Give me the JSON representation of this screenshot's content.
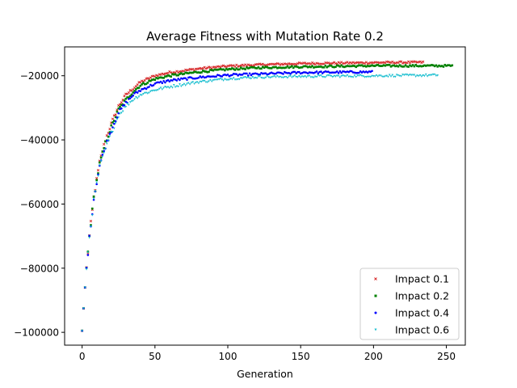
{
  "chart_data": {
    "type": "scatter",
    "title": "Average Fitness with Mutation Rate 0.2",
    "xlabel": "Generation",
    "ylabel": "",
    "xlim": [
      -12,
      263
    ],
    "ylim": [
      -104000,
      -11000
    ],
    "xticks": [
      0,
      50,
      100,
      150,
      200,
      250
    ],
    "xtick_labels": [
      "0",
      "50",
      "100",
      "150",
      "200",
      "250"
    ],
    "yticks": [
      -100000,
      -80000,
      -60000,
      -40000,
      -20000
    ],
    "ytick_labels": [
      "−100000",
      "−80000",
      "−60000",
      "−40000",
      "−20000"
    ],
    "legend_position": "lower right",
    "grid": false,
    "series": [
      {
        "name": "Impact 0.1",
        "color": "#d62728",
        "marker": "x",
        "n_generations": 235,
        "x": [
          0,
          1,
          2,
          3,
          5,
          8,
          12,
          16,
          20,
          25,
          30,
          35,
          40,
          50,
          60,
          80,
          100,
          120,
          150,
          200,
          234
        ],
        "y": [
          -99500,
          -92500,
          -86000,
          -80000,
          -70000,
          -58000,
          -47000,
          -40000,
          -35000,
          -29500,
          -26000,
          -24000,
          -22000,
          -20000,
          -19000,
          -17800,
          -17000,
          -16600,
          -16200,
          -15900,
          -15800
        ]
      },
      {
        "name": "Impact 0.2",
        "color": "#008000",
        "marker": "s",
        "n_generations": 255,
        "x": [
          0,
          1,
          2,
          3,
          5,
          8,
          12,
          16,
          20,
          25,
          30,
          35,
          40,
          50,
          60,
          80,
          100,
          120,
          150,
          200,
          254
        ],
        "y": [
          -99500,
          -92500,
          -86000,
          -80000,
          -70000,
          -58000,
          -47500,
          -41000,
          -36000,
          -30500,
          -27500,
          -25000,
          -23000,
          -21000,
          -20000,
          -18800,
          -18000,
          -17500,
          -17200,
          -16900,
          -16900
        ]
      },
      {
        "name": "Impact 0.4",
        "color": "#0000ff",
        "marker": "o",
        "n_generations": 200,
        "x": [
          0,
          1,
          2,
          3,
          5,
          8,
          12,
          16,
          20,
          25,
          30,
          35,
          40,
          50,
          60,
          80,
          100,
          120,
          150,
          199
        ],
        "y": [
          -99500,
          -92500,
          -86000,
          -80000,
          -70500,
          -58500,
          -48000,
          -42000,
          -37000,
          -31500,
          -28500,
          -26000,
          -24500,
          -22500,
          -21500,
          -20500,
          -19800,
          -19500,
          -19000,
          -18800
        ]
      },
      {
        "name": "Impact 0.6",
        "color": "#17becf",
        "marker": "v",
        "n_generations": 245,
        "x": [
          0,
          1,
          2,
          3,
          5,
          8,
          12,
          16,
          20,
          25,
          30,
          35,
          40,
          50,
          60,
          80,
          100,
          120,
          150,
          200,
          244
        ],
        "y": [
          -99500,
          -92500,
          -86000,
          -80000,
          -70500,
          -59000,
          -48500,
          -43000,
          -38000,
          -32500,
          -29500,
          -27500,
          -26000,
          -24500,
          -23500,
          -22000,
          -21000,
          -20500,
          -20300,
          -20100,
          -19900
        ]
      }
    ]
  }
}
